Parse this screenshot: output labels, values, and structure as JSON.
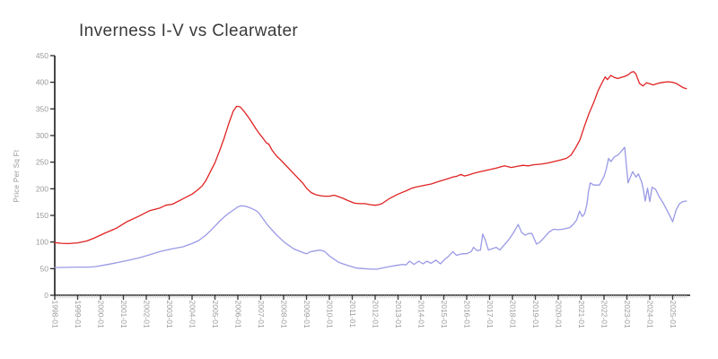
{
  "title": "Inverness I-V vs Clearwater",
  "chart_data": {
    "type": "line",
    "title": "Inverness I-V vs Clearwater",
    "xlabel": "",
    "ylabel": "Price Per Sq Ft",
    "ylim": [
      0,
      450
    ],
    "y_ticks": [
      0,
      50,
      100,
      150,
      200,
      250,
      300,
      350,
      400,
      450
    ],
    "x_tick_labels": [
      "1998-01",
      "1999-01",
      "2000-01",
      "2001-01",
      "2002-01",
      "2003-01",
      "2004-01",
      "2005-01",
      "2006-01",
      "2007-01",
      "2008-01",
      "2009-01",
      "2010-01",
      "2011-01",
      "2012-01",
      "2013-01",
      "2014-01",
      "2015-01",
      "2016-01",
      "2017-01",
      "2018-01",
      "2019-01",
      "2020-01",
      "2021-01",
      "2022-01",
      "2023-01",
      "2024-01",
      "2025-01"
    ],
    "x_minor_ticks": "monthly",
    "grid": false,
    "legend": "none",
    "axis_color": "#1a1a1a",
    "tick_label_color": "#999999",
    "series": [
      {
        "name": "red",
        "color": "#e02222",
        "points": [
          [
            1998.0,
            99
          ],
          [
            1998.3,
            97.5
          ],
          [
            1998.6,
            97
          ],
          [
            1999.0,
            98.5
          ],
          [
            1999.4,
            102
          ],
          [
            1999.7,
            107
          ],
          [
            2000.2,
            117
          ],
          [
            2000.7,
            126
          ],
          [
            2001.15,
            138
          ],
          [
            2001.65,
            148
          ],
          [
            2002.15,
            159
          ],
          [
            2002.6,
            164
          ],
          [
            2002.85,
            169
          ],
          [
            2003.15,
            171
          ],
          [
            2003.6,
            181
          ],
          [
            2004.0,
            190
          ],
          [
            2004.25,
            198
          ],
          [
            2004.45,
            206
          ],
          [
            2004.6,
            215
          ],
          [
            2004.8,
            232
          ],
          [
            2005.0,
            249
          ],
          [
            2005.2,
            271
          ],
          [
            2005.4,
            295
          ],
          [
            2005.6,
            322
          ],
          [
            2005.8,
            346
          ],
          [
            2005.95,
            355
          ],
          [
            2006.1,
            354
          ],
          [
            2006.3,
            344
          ],
          [
            2006.5,
            332
          ],
          [
            2006.8,
            312
          ],
          [
            2006.95,
            303
          ],
          [
            2007.1,
            295
          ],
          [
            2007.25,
            286
          ],
          [
            2007.35,
            284
          ],
          [
            2007.5,
            272
          ],
          [
            2007.7,
            261
          ],
          [
            2007.85,
            255
          ],
          [
            2008.05,
            246
          ],
          [
            2008.45,
            228
          ],
          [
            2008.85,
            210
          ],
          [
            2009.0,
            201
          ],
          [
            2009.2,
            193
          ],
          [
            2009.4,
            189
          ],
          [
            2009.6,
            187
          ],
          [
            2009.8,
            186
          ],
          [
            2010.0,
            186
          ],
          [
            2010.2,
            188
          ],
          [
            2010.35,
            186
          ],
          [
            2010.6,
            182
          ],
          [
            2010.8,
            178
          ],
          [
            2011.1,
            173
          ],
          [
            2011.3,
            172
          ],
          [
            2011.55,
            172
          ],
          [
            2011.8,
            170
          ],
          [
            2012.0,
            169
          ],
          [
            2012.15,
            170
          ],
          [
            2012.3,
            172
          ],
          [
            2012.6,
            181
          ],
          [
            2013.0,
            190
          ],
          [
            2013.4,
            197
          ],
          [
            2013.6,
            201
          ],
          [
            2013.75,
            203
          ],
          [
            2014.1,
            206
          ],
          [
            2014.45,
            209
          ],
          [
            2014.8,
            214
          ],
          [
            2015.1,
            218
          ],
          [
            2015.4,
            222
          ],
          [
            2015.6,
            224
          ],
          [
            2015.75,
            227
          ],
          [
            2015.9,
            224
          ],
          [
            2016.1,
            226
          ],
          [
            2016.3,
            229
          ],
          [
            2016.6,
            232
          ],
          [
            2017.0,
            236
          ],
          [
            2017.3,
            239
          ],
          [
            2017.65,
            243
          ],
          [
            2017.95,
            240
          ],
          [
            2018.2,
            242
          ],
          [
            2018.45,
            244
          ],
          [
            2018.7,
            243
          ],
          [
            2018.9,
            245
          ],
          [
            2019.2,
            246
          ],
          [
            2019.5,
            248
          ],
          [
            2019.8,
            251
          ],
          [
            2020.1,
            254
          ],
          [
            2020.35,
            257
          ],
          [
            2020.55,
            263
          ],
          [
            2020.75,
            276
          ],
          [
            2020.95,
            292
          ],
          [
            2021.15,
            318
          ],
          [
            2021.35,
            342
          ],
          [
            2021.55,
            362
          ],
          [
            2021.75,
            385
          ],
          [
            2021.95,
            402
          ],
          [
            2022.05,
            410
          ],
          [
            2022.15,
            405
          ],
          [
            2022.3,
            413
          ],
          [
            2022.45,
            409
          ],
          [
            2022.6,
            407
          ],
          [
            2022.75,
            409
          ],
          [
            2022.9,
            411
          ],
          [
            2023.05,
            414
          ],
          [
            2023.2,
            419
          ],
          [
            2023.3,
            420
          ],
          [
            2023.4,
            415
          ],
          [
            2023.55,
            398
          ],
          [
            2023.7,
            393
          ],
          [
            2023.85,
            399
          ],
          [
            2024.0,
            397
          ],
          [
            2024.15,
            395
          ],
          [
            2024.3,
            397
          ],
          [
            2024.45,
            399
          ],
          [
            2024.6,
            400
          ],
          [
            2024.8,
            401
          ],
          [
            2025.0,
            400
          ],
          [
            2025.15,
            398
          ],
          [
            2025.3,
            394
          ],
          [
            2025.45,
            390
          ],
          [
            2025.6,
            388
          ]
        ]
      },
      {
        "name": "blue",
        "color": "#9a9ae6",
        "points": [
          [
            1998.0,
            52
          ],
          [
            1998.5,
            52.5
          ],
          [
            1999.0,
            53
          ],
          [
            1999.5,
            53
          ],
          [
            1999.8,
            54
          ],
          [
            2000.2,
            57
          ],
          [
            2000.7,
            61
          ],
          [
            2001.15,
            65
          ],
          [
            2001.65,
            70
          ],
          [
            2002.15,
            76
          ],
          [
            2002.6,
            82
          ],
          [
            2003.1,
            87
          ],
          [
            2003.6,
            91
          ],
          [
            2004.0,
            97
          ],
          [
            2004.3,
            103
          ],
          [
            2004.6,
            113
          ],
          [
            2004.8,
            121
          ],
          [
            2005.0,
            130
          ],
          [
            2005.2,
            139
          ],
          [
            2005.4,
            147
          ],
          [
            2005.6,
            154
          ],
          [
            2005.8,
            160
          ],
          [
            2006.0,
            166
          ],
          [
            2006.15,
            168
          ],
          [
            2006.35,
            167
          ],
          [
            2006.55,
            164
          ],
          [
            2006.8,
            159
          ],
          [
            2006.95,
            153
          ],
          [
            2007.3,
            132
          ],
          [
            2007.7,
            113
          ],
          [
            2008.05,
            99
          ],
          [
            2008.45,
            87
          ],
          [
            2008.85,
            80
          ],
          [
            2009.0,
            78
          ],
          [
            2009.2,
            82
          ],
          [
            2009.45,
            84
          ],
          [
            2009.6,
            85
          ],
          [
            2009.8,
            82
          ],
          [
            2010.0,
            74
          ],
          [
            2010.4,
            62
          ],
          [
            2010.8,
            56
          ],
          [
            2011.2,
            51
          ],
          [
            2011.5,
            50
          ],
          [
            2011.8,
            49
          ],
          [
            2012.1,
            49
          ],
          [
            2012.5,
            53
          ],
          [
            2012.9,
            56
          ],
          [
            2013.2,
            58
          ],
          [
            2013.35,
            57
          ],
          [
            2013.5,
            64
          ],
          [
            2013.7,
            58
          ],
          [
            2013.9,
            64
          ],
          [
            2014.1,
            59
          ],
          [
            2014.25,
            64
          ],
          [
            2014.45,
            60
          ],
          [
            2014.65,
            66
          ],
          [
            2014.85,
            59
          ],
          [
            2015.05,
            68
          ],
          [
            2015.2,
            73
          ],
          [
            2015.4,
            82
          ],
          [
            2015.55,
            75
          ],
          [
            2015.8,
            78
          ],
          [
            2016.0,
            78
          ],
          [
            2016.2,
            82
          ],
          [
            2016.3,
            90
          ],
          [
            2016.45,
            84
          ],
          [
            2016.6,
            85
          ],
          [
            2016.7,
            115
          ],
          [
            2016.8,
            105
          ],
          [
            2016.95,
            85
          ],
          [
            2017.15,
            88
          ],
          [
            2017.3,
            90
          ],
          [
            2017.45,
            85
          ],
          [
            2017.65,
            95
          ],
          [
            2017.85,
            105
          ],
          [
            2018.05,
            118
          ],
          [
            2018.25,
            133
          ],
          [
            2018.4,
            118
          ],
          [
            2018.55,
            113
          ],
          [
            2018.7,
            116
          ],
          [
            2018.85,
            116
          ],
          [
            2019.05,
            96
          ],
          [
            2019.2,
            100
          ],
          [
            2019.4,
            109
          ],
          [
            2019.6,
            119
          ],
          [
            2019.8,
            124
          ],
          [
            2020.0,
            123
          ],
          [
            2020.2,
            124
          ],
          [
            2020.5,
            127
          ],
          [
            2020.65,
            133
          ],
          [
            2020.8,
            141
          ],
          [
            2020.93,
            158
          ],
          [
            2021.05,
            148
          ],
          [
            2021.15,
            153
          ],
          [
            2021.25,
            170
          ],
          [
            2021.32,
            195
          ],
          [
            2021.4,
            211
          ],
          [
            2021.55,
            207
          ],
          [
            2021.8,
            207
          ],
          [
            2022.0,
            223
          ],
          [
            2022.1,
            237
          ],
          [
            2022.2,
            257
          ],
          [
            2022.3,
            251
          ],
          [
            2022.45,
            260
          ],
          [
            2022.6,
            263
          ],
          [
            2022.75,
            270
          ],
          [
            2022.9,
            278
          ],
          [
            2023.05,
            211
          ],
          [
            2023.25,
            232
          ],
          [
            2023.4,
            222
          ],
          [
            2023.5,
            228
          ],
          [
            2023.65,
            212
          ],
          [
            2023.72,
            198
          ],
          [
            2023.8,
            177
          ],
          [
            2023.9,
            201
          ],
          [
            2024.0,
            176
          ],
          [
            2024.1,
            203
          ],
          [
            2024.25,
            199
          ],
          [
            2024.4,
            186
          ],
          [
            2024.6,
            172
          ],
          [
            2024.75,
            160
          ],
          [
            2024.9,
            147
          ],
          [
            2025.0,
            138
          ],
          [
            2025.15,
            160
          ],
          [
            2025.3,
            172
          ],
          [
            2025.45,
            176
          ],
          [
            2025.6,
            177
          ]
        ]
      }
    ]
  }
}
